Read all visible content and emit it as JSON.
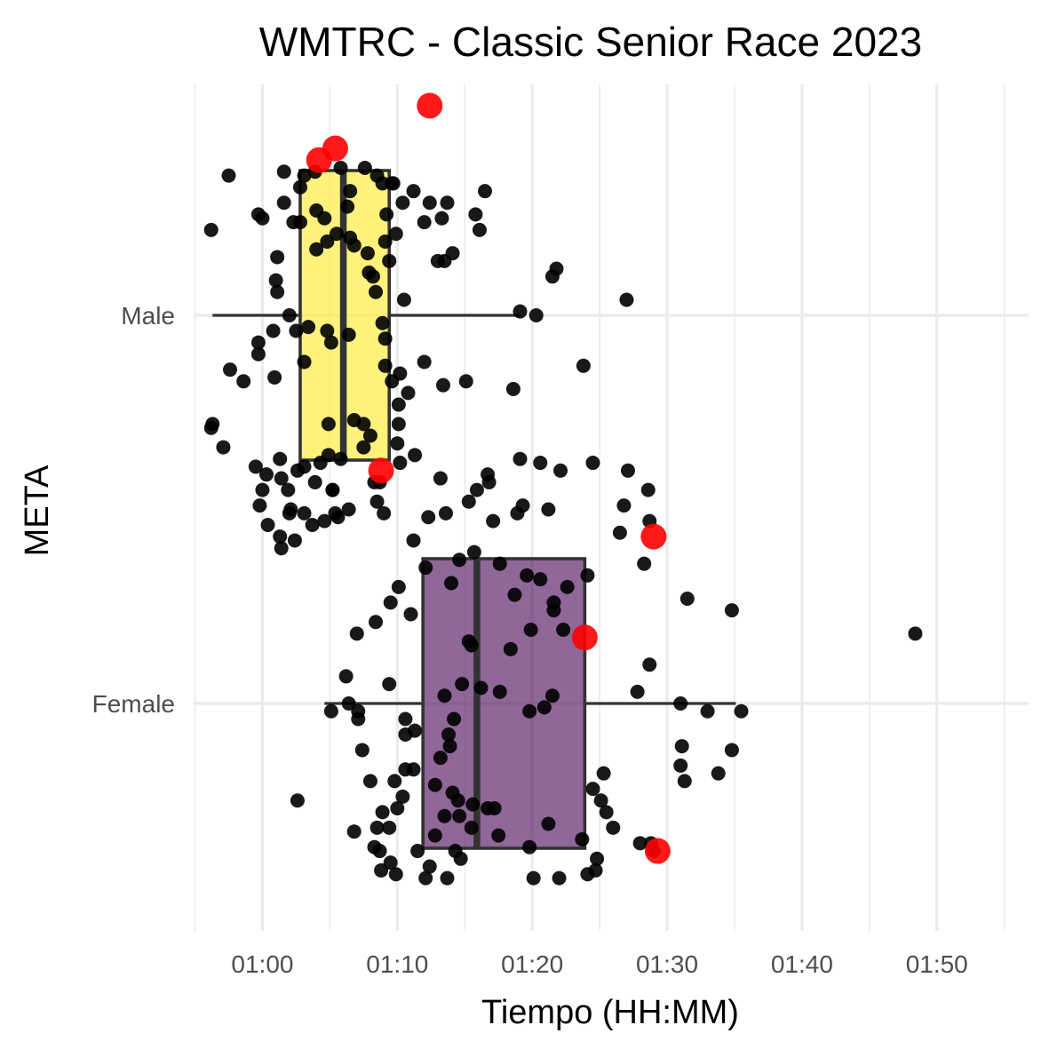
{
  "chart_data": {
    "type": "boxplot",
    "title": "WMTRC - Classic Senior Race 2023",
    "xlabel": "Tiempo (HH:MM)",
    "ylabel": "META",
    "x_unit": "minutes",
    "xlim": [
      54.9,
      116.8
    ],
    "x_ticks": [
      {
        "value": 60,
        "label": "01:00"
      },
      {
        "value": 70,
        "label": "01:10"
      },
      {
        "value": 80,
        "label": "01:20"
      },
      {
        "value": 90,
        "label": "01:30"
      },
      {
        "value": 100,
        "label": "01:40"
      },
      {
        "value": 110,
        "label": "01:50"
      }
    ],
    "categories": [
      "Male",
      "Female"
    ],
    "grid": true,
    "legend": "none",
    "box_edge_color": "#333333",
    "highlight_color": "#ff0000",
    "groups": [
      {
        "name": "Male",
        "color": "#fde725",
        "whisker_low": 56.3,
        "q1": 62.8,
        "median": 66.0,
        "q3": 69.4,
        "whisker_high": 79.1,
        "points": [
          [
            57.5,
            0.36
          ],
          [
            60.0,
            0.25
          ],
          [
            61.6,
            0.37
          ],
          [
            63.1,
            0.36
          ],
          [
            63.9,
            0.37
          ],
          [
            65.8,
            0.38
          ],
          [
            67.6,
            0.38
          ],
          [
            68.5,
            0.36
          ],
          [
            62.8,
            0.33
          ],
          [
            66.5,
            0.32
          ],
          [
            72.4,
            0.29
          ],
          [
            69.6,
            0.34
          ],
          [
            71.2,
            0.32
          ],
          [
            73.3,
            0.25
          ],
          [
            73.7,
            0.29
          ],
          [
            75.8,
            0.26
          ],
          [
            76.5,
            0.32
          ],
          [
            68.9,
            0.34
          ],
          [
            69.7,
            0.34
          ],
          [
            66.3,
            0.28
          ],
          [
            69.2,
            0.26
          ],
          [
            70.4,
            0.29
          ],
          [
            72.0,
            0.24
          ],
          [
            73.0,
            0.14
          ],
          [
            73.5,
            0.14
          ],
          [
            74.1,
            0.16
          ],
          [
            76.1,
            0.22
          ],
          [
            81.5,
            0.1
          ],
          [
            81.8,
            0.12
          ],
          [
            87.0,
            0.04
          ],
          [
            56.2,
            0.22
          ],
          [
            59.7,
            0.26
          ],
          [
            61.6,
            0.29
          ],
          [
            62.3,
            0.24
          ],
          [
            62.8,
            0.24
          ],
          [
            64.0,
            0.17
          ],
          [
            64.8,
            0.19
          ],
          [
            65.5,
            0.21
          ],
          [
            66.8,
            0.18
          ],
          [
            67.9,
            0.11
          ],
          [
            69.4,
            0.14
          ],
          [
            69.9,
            0.21
          ],
          [
            67.8,
            0.16
          ],
          [
            68.2,
            0.1
          ],
          [
            68.4,
            0.06
          ],
          [
            70.5,
            0.04
          ],
          [
            69.1,
            0.19
          ],
          [
            64.6,
            0.25
          ],
          [
            66.5,
            0.2
          ],
          [
            64.0,
            0.27
          ],
          [
            61.1,
            0.15
          ],
          [
            61.0,
            0.09
          ],
          [
            61.1,
            0.06
          ],
          [
            62.0,
            0.0
          ],
          [
            62.5,
            -0.04
          ],
          [
            63.4,
            -0.03
          ],
          [
            60.8,
            -0.04
          ],
          [
            59.7,
            -0.07
          ],
          [
            57.6,
            -0.14
          ],
          [
            58.6,
            -0.17
          ],
          [
            68.9,
            -0.02
          ],
          [
            69.1,
            -0.06
          ],
          [
            69.1,
            -0.13
          ],
          [
            70.2,
            -0.15
          ],
          [
            72.0,
            -0.12
          ],
          [
            73.4,
            -0.18
          ],
          [
            75.1,
            -0.17
          ],
          [
            78.6,
            -0.19
          ],
          [
            80.3,
            0.0
          ],
          [
            79.1,
            0.01
          ],
          [
            64.8,
            -0.04
          ],
          [
            65.1,
            -0.07
          ],
          [
            66.4,
            -0.05
          ],
          [
            69.6,
            -0.17
          ],
          [
            70.8,
            -0.2
          ],
          [
            70.1,
            -0.23
          ],
          [
            56.2,
            -0.29
          ],
          [
            56.3,
            -0.28
          ],
          [
            57.1,
            -0.34
          ],
          [
            59.5,
            -0.39
          ],
          [
            60.3,
            -0.41
          ],
          [
            60.0,
            -0.45
          ],
          [
            59.8,
            -0.49
          ],
          [
            61.3,
            -0.37
          ],
          [
            61.9,
            -0.45
          ],
          [
            62.6,
            -0.4
          ],
          [
            63.1,
            -0.39
          ],
          [
            63.7,
            -0.54
          ],
          [
            64.6,
            -0.53
          ],
          [
            65.6,
            -0.52
          ],
          [
            66.4,
            -0.5
          ],
          [
            65.2,
            -0.45
          ],
          [
            64.9,
            -0.36
          ],
          [
            67.5,
            -0.34
          ],
          [
            67.5,
            -0.28
          ],
          [
            68.0,
            -0.31
          ],
          [
            68.3,
            -0.43
          ],
          [
            68.7,
            -0.43
          ],
          [
            70.0,
            -0.33
          ],
          [
            71.3,
            -0.36
          ],
          [
            62.1,
            -0.5
          ],
          [
            61.3,
            -0.57
          ],
          [
            61.4,
            -0.42
          ],
          [
            62.0,
            -0.51
          ],
          [
            63.9,
            -0.43
          ],
          [
            64.3,
            -0.38
          ],
          [
            64.9,
            -0.28
          ],
          [
            65.8,
            -0.37
          ],
          [
            60.4,
            -0.54
          ],
          [
            61.4,
            -0.6
          ],
          [
            62.4,
            -0.58
          ],
          [
            63.1,
            -0.51
          ],
          [
            65.2,
            -0.45
          ],
          [
            66.8,
            -0.27
          ],
          [
            68.5,
            -0.48
          ],
          [
            69.0,
            -0.51
          ],
          [
            70.1,
            -0.28
          ],
          [
            73.6,
            -0.51
          ],
          [
            77.1,
            -0.53
          ],
          [
            78.9,
            -0.51
          ],
          [
            79.3,
            -0.49
          ],
          [
            81.2,
            -0.5
          ],
          [
            83.8,
            -0.13
          ],
          [
            86.8,
            -0.49
          ],
          [
            76.7,
            -0.41
          ],
          [
            75.9,
            -0.45
          ],
          [
            72.3,
            -0.52
          ],
          [
            60.9,
            -0.16
          ],
          [
            59.7,
            -0.1
          ],
          [
            63.1,
            -0.12
          ]
        ],
        "highlights": [
          [
            72.4,
            0.54
          ],
          [
            65.4,
            0.43
          ],
          [
            64.2,
            0.4
          ],
          [
            68.8,
            -0.4
          ]
        ]
      },
      {
        "name": "Female",
        "color": "#440154",
        "whisker_low": 64.6,
        "q1": 71.9,
        "median": 75.9,
        "q3": 83.9,
        "whisker_high": 95.1,
        "points": [
          [
            65.4,
            0.49
          ],
          [
            70.2,
            0.62
          ],
          [
            73.2,
            0.58
          ],
          [
            75.3,
            0.52
          ],
          [
            76.8,
            0.57
          ],
          [
            79.1,
            0.63
          ],
          [
            80.6,
            0.62
          ],
          [
            82.1,
            0.6
          ],
          [
            84.5,
            0.62
          ],
          [
            87.1,
            0.6
          ],
          [
            88.6,
            0.55
          ],
          [
            88.7,
            0.47
          ],
          [
            86.5,
            0.44
          ],
          [
            88.3,
            0.36
          ],
          [
            84.1,
            0.33
          ],
          [
            82.6,
            0.3
          ],
          [
            91.5,
            0.27
          ],
          [
            94.8,
            0.24
          ],
          [
            108.4,
            0.18
          ],
          [
            71.2,
            0.42
          ],
          [
            72.1,
            0.35
          ],
          [
            74.6,
            0.37
          ],
          [
            75.7,
            0.39
          ],
          [
            77.6,
            0.36
          ],
          [
            78.7,
            0.28
          ],
          [
            79.6,
            0.33
          ],
          [
            80.6,
            0.32
          ],
          [
            81.6,
            0.26
          ],
          [
            71.0,
            0.23
          ],
          [
            68.4,
            0.21
          ],
          [
            69.5,
            0.26
          ],
          [
            70.1,
            0.3
          ],
          [
            67.0,
            0.18
          ],
          [
            74.0,
            0.31
          ],
          [
            75.3,
            0.16
          ],
          [
            75.5,
            0.15
          ],
          [
            78.4,
            0.14
          ],
          [
            79.9,
            0.19
          ],
          [
            81.6,
            0.24
          ],
          [
            82.3,
            0.19
          ],
          [
            88.7,
            0.1
          ],
          [
            87.8,
            0.03
          ],
          [
            91.0,
            0.0
          ],
          [
            93.0,
            -0.02
          ],
          [
            95.5,
            -0.02
          ],
          [
            76.2,
            0.04
          ],
          [
            77.6,
            0.03
          ],
          [
            79.8,
            -0.02
          ],
          [
            80.9,
            -0.01
          ],
          [
            81.5,
            0.02
          ],
          [
            66.4,
            0.0
          ],
          [
            67.1,
            -0.02
          ],
          [
            66.2,
            0.07
          ],
          [
            69.4,
            0.05
          ],
          [
            73.5,
            0.02
          ],
          [
            74.8,
            0.05
          ],
          [
            74.2,
            -0.04
          ],
          [
            73.8,
            -0.08
          ],
          [
            73.9,
            -0.11
          ],
          [
            70.6,
            -0.08
          ],
          [
            71.3,
            -0.07
          ],
          [
            70.6,
            -0.04
          ],
          [
            67.1,
            -0.04
          ],
          [
            67.4,
            -0.12
          ],
          [
            65.1,
            -0.02
          ],
          [
            71.2,
            -0.17
          ],
          [
            70.6,
            -0.17
          ],
          [
            68.0,
            -0.2
          ],
          [
            69.8,
            -0.2
          ],
          [
            73.2,
            -0.14
          ],
          [
            72.8,
            -0.21
          ],
          [
            74.1,
            -0.23
          ],
          [
            74.5,
            -0.25
          ],
          [
            75.6,
            -0.26
          ],
          [
            76.7,
            -0.27
          ],
          [
            77.2,
            -0.27
          ],
          [
            74.6,
            -0.29
          ],
          [
            70.4,
            -0.24
          ],
          [
            70.0,
            -0.27
          ],
          [
            68.9,
            -0.28
          ],
          [
            68.5,
            -0.32
          ],
          [
            69.4,
            -0.32
          ],
          [
            72.8,
            -0.34
          ],
          [
            73.5,
            -0.29
          ],
          [
            75.5,
            -0.32
          ],
          [
            77.5,
            -0.34
          ],
          [
            79.8,
            -0.37
          ],
          [
            81.2,
            -0.31
          ],
          [
            84.5,
            -0.22
          ],
          [
            85.1,
            -0.25
          ],
          [
            85.5,
            -0.28
          ],
          [
            86.0,
            -0.32
          ],
          [
            88.0,
            -0.36
          ],
          [
            91.1,
            -0.11
          ],
          [
            91.0,
            -0.16
          ],
          [
            91.3,
            -0.2
          ],
          [
            93.8,
            -0.18
          ],
          [
            94.8,
            -0.12
          ],
          [
            89.0,
            -0.38
          ],
          [
            88.8,
            -0.36
          ],
          [
            84.8,
            -0.4
          ],
          [
            83.7,
            -0.35
          ],
          [
            82.0,
            -0.45
          ],
          [
            80.1,
            -0.45
          ],
          [
            84.7,
            -0.43
          ],
          [
            84.1,
            -0.44
          ],
          [
            62.6,
            -0.25
          ],
          [
            66.8,
            -0.33
          ],
          [
            68.3,
            -0.37
          ],
          [
            68.8,
            -0.43
          ],
          [
            68.7,
            -0.38
          ],
          [
            69.5,
            -0.41
          ],
          [
            69.9,
            -0.44
          ],
          [
            71.5,
            -0.38
          ],
          [
            72.4,
            -0.42
          ],
          [
            72.1,
            -0.45
          ],
          [
            73.7,
            -0.45
          ],
          [
            74.3,
            -0.38
          ],
          [
            74.7,
            -0.4
          ],
          [
            85.3,
            -0.18
          ]
        ],
        "highlights": [
          [
            89.0,
            0.43
          ],
          [
            83.9,
            0.17
          ],
          [
            89.3,
            -0.38
          ]
        ]
      }
    ]
  }
}
